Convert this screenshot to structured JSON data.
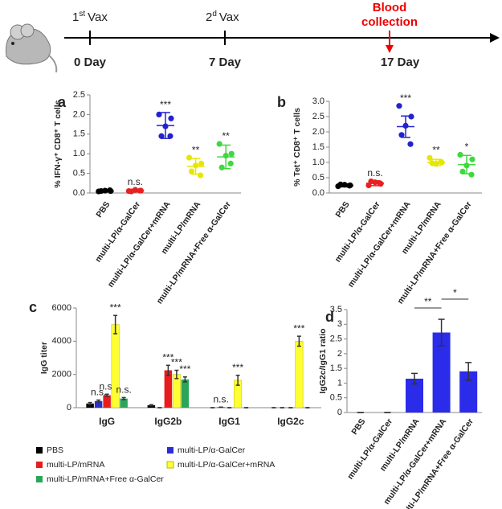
{
  "timeline": {
    "events": [
      {
        "number": "1",
        "suffix": "st",
        "label": "Vax",
        "day": "0 Day"
      },
      {
        "number": "2",
        "suffix": "d",
        "label": "Vax",
        "day": "7 Day"
      },
      {
        "lines": [
          "Blood",
          "collection"
        ],
        "day": "17 Day"
      }
    ]
  },
  "chart_data": [
    {
      "type": "dot",
      "panel": "a",
      "y_label": "% IFN-γ⁺ CD8⁺ T cells",
      "categories": [
        "PBS",
        "multi-LP/α-GalCer",
        "multi-LP/α-GalCer+mRNA",
        "multi-LP/mRNA",
        "multi-LP/mRNA+Free α-GalCer"
      ],
      "colors": [
        "#000000",
        "#e82020",
        "#2222d0",
        "#e6e600",
        "#3fd83f"
      ],
      "points": [
        [
          0.04,
          0.05,
          0.06,
          0.05,
          0.07
        ],
        [
          0.05,
          0.06,
          0.08,
          0.04,
          0.06
        ],
        [
          2.0,
          1.9,
          1.7,
          1.45,
          1.45
        ],
        [
          0.9,
          0.75,
          0.7,
          0.55,
          0.45
        ],
        [
          1.25,
          1.0,
          0.95,
          0.65,
          0.75
        ]
      ],
      "means": [
        0.05,
        0.06,
        1.72,
        0.68,
        0.92
      ],
      "errors": [
        0.02,
        0.03,
        0.33,
        0.2,
        0.3
      ],
      "annotations": [
        null,
        "n.s.",
        "***",
        "**",
        "**"
      ],
      "ylim": [
        0,
        2.5
      ],
      "yticks": [
        {
          "value": 0,
          "label": "0.0"
        },
        {
          "value": 0.5,
          "label": "0.5"
        },
        {
          "value": 1,
          "label": "1.0"
        },
        {
          "value": 1.5,
          "label": "1.5"
        },
        {
          "value": 2,
          "label": "2.0"
        },
        {
          "value": 2.5,
          "label": "2.5"
        }
      ]
    },
    {
      "type": "dot",
      "panel": "b",
      "y_label": "% Tet⁺ CD8⁺ T cells",
      "categories": [
        "PBS",
        "multi-LP/α-GalCer",
        "multi-LP/α-GalCer+mRNA",
        "multi-LP/mRNA",
        "multi-LP/mRNA+Free α-GalCer"
      ],
      "colors": [
        "#000000",
        "#e82020",
        "#2222d0",
        "#e6e600",
        "#3fd83f"
      ],
      "points": [
        [
          0.22,
          0.25,
          0.27,
          0.28,
          0.24
        ],
        [
          0.25,
          0.3,
          0.35,
          0.38,
          0.32
        ],
        [
          2.85,
          2.5,
          2.2,
          1.9,
          1.6
        ],
        [
          1.15,
          1.0,
          0.95,
          0.98,
          1.02
        ],
        [
          1.25,
          1.1,
          0.9,
          0.7,
          0.6
        ]
      ],
      "means": [
        0.25,
        0.32,
        2.17,
        1.0,
        0.93
      ],
      "errors": [
        0.05,
        0.08,
        0.35,
        0.1,
        0.3
      ],
      "annotations": [
        null,
        "n.s.",
        "***",
        "**",
        "*"
      ],
      "ylim": [
        0,
        3
      ],
      "yticks": [
        {
          "value": 0,
          "label": "0.0"
        },
        {
          "value": 0.5,
          "label": "0.5"
        },
        {
          "value": 1,
          "label": "1.0"
        },
        {
          "value": 1.5,
          "label": "1.5"
        },
        {
          "value": 2,
          "label": "2.0"
        },
        {
          "value": 2.5,
          "label": "2.5"
        },
        {
          "value": 3,
          "label": "3.0"
        }
      ]
    },
    {
      "type": "grouped-bar",
      "panel": "c",
      "y_label": "IgG titer",
      "categories": [
        "IgG",
        "IgG2b",
        "IgG1",
        "IgG2c"
      ],
      "series": [
        {
          "name": "PBS",
          "color": "#000000",
          "values": [
            250,
            150,
            0,
            0
          ],
          "errors": [
            60,
            30,
            0,
            0
          ],
          "annotations": [
            null,
            null,
            null,
            null
          ]
        },
        {
          "name": "multi-LP/α-GalCer",
          "color": "#2b2bd8",
          "values": [
            400,
            0,
            30,
            0
          ],
          "errors": [
            60,
            0,
            0,
            0
          ],
          "annotations": [
            "n.s.",
            null,
            "n.s.",
            null
          ]
        },
        {
          "name": "multi-LP/mRNA",
          "color": "#e81c1c",
          "values": [
            750,
            2250,
            0,
            0
          ],
          "errors": [
            60,
            300,
            0,
            0
          ],
          "annotations": [
            "n.s.",
            "***",
            null,
            null
          ]
        },
        {
          "name": "multi-LP/α-GalCer+mRNA",
          "color": "#ffff33",
          "values": [
            5000,
            2000,
            1650,
            4000
          ],
          "errors": [
            550,
            250,
            300,
            300
          ],
          "annotations": [
            "***",
            "***",
            "***",
            "***"
          ]
        },
        {
          "name": "multi-LP/mRNA+Free α-GalCer",
          "color": "#2aa55a",
          "values": [
            550,
            1700,
            0,
            0
          ],
          "errors": [
            60,
            150,
            0,
            0
          ],
          "annotations": [
            "n.s.",
            "***",
            null,
            null
          ]
        }
      ],
      "ylim": [
        0,
        6000
      ],
      "yticks": [
        0,
        2000,
        4000,
        6000
      ]
    },
    {
      "type": "bar",
      "panel": "d",
      "y_label": "IgG2c/IgG1 ratio",
      "categories": [
        "PBS",
        "multi-LP/α-GalCer",
        "multi-LP/mRNA",
        "multi-LP/α-GalCer+mRNA",
        "multi-LP/mRNA+Free α-GalCer"
      ],
      "values": [
        0,
        0,
        1.15,
        2.72,
        1.4
      ],
      "errors": [
        0,
        0,
        0.18,
        0.45,
        0.3
      ],
      "color": "#2b2bea",
      "brackets": [
        "**",
        "*"
      ],
      "ylim": [
        0,
        3.5
      ],
      "yticks": [
        0,
        0.5,
        1,
        1.5,
        2,
        2.5,
        3,
        3.5
      ]
    }
  ]
}
